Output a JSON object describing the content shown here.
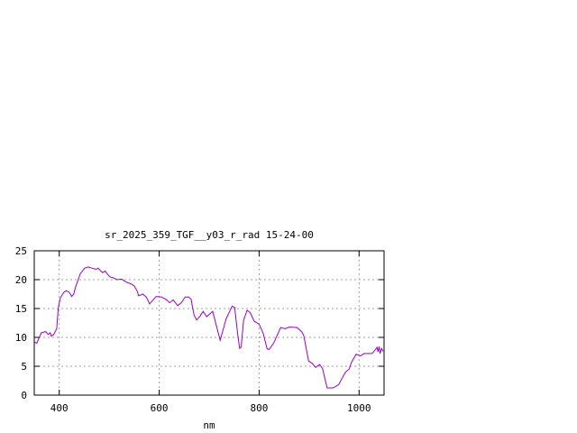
{
  "chart_data": {
    "type": "line",
    "title": "sr_2025_359_TGF__y03_r_rad 15-24-00",
    "xlabel": "nm",
    "ylabel": "",
    "xlim": [
      350,
      1050
    ],
    "ylim": [
      0,
      25
    ],
    "xticks": [
      400,
      600,
      800,
      1000
    ],
    "yticks": [
      0,
      5,
      10,
      15,
      20,
      25
    ],
    "grid": true,
    "line_color": "#9400d3",
    "series": [
      {
        "x": [
          350,
          355,
          364,
          373,
          378,
          382,
          384,
          389,
          395,
          398,
          402,
          409,
          414,
          420,
          425,
          429,
          433,
          442,
          451,
          458,
          465,
          474,
          478,
          483,
          487,
          492,
          496,
          501,
          509,
          516,
          525,
          530,
          536,
          543,
          550,
          556,
          559,
          567,
          574,
          581,
          588,
          594,
          605,
          615,
          621,
          628,
          637,
          644,
          652,
          659,
          664,
          666,
          670,
          675,
          682,
          688,
          695,
          707,
          722,
          734,
          746,
          751,
          757,
          761,
          764,
          769,
          776,
          782,
          790,
          800,
          808,
          816,
          820,
          829,
          843,
          852,
          861,
          876,
          885,
          889,
          899,
          906,
          913,
          921,
          927,
          936,
          948,
          959,
          967,
          973,
          980,
          985,
          994,
          1003,
          1010,
          1026,
          1032,
          1036,
          1038,
          1040,
          1042,
          1045,
          1048
        ],
        "y": [
          9.2,
          9.0,
          10.8,
          11.0,
          10.5,
          10.8,
          10.2,
          10.5,
          11.5,
          15.0,
          16.8,
          17.8,
          18.1,
          17.8,
          17.1,
          17.5,
          18.8,
          21.0,
          22.0,
          22.2,
          22.0,
          21.8,
          22.0,
          21.5,
          21.2,
          21.5,
          21.0,
          20.5,
          20.3,
          20.0,
          20.1,
          19.8,
          19.5,
          19.3,
          18.9,
          18.0,
          17.2,
          17.5,
          17.0,
          15.8,
          16.5,
          17.1,
          17.0,
          16.5,
          16.0,
          16.5,
          15.5,
          16.0,
          17.0,
          17.0,
          16.6,
          15.5,
          13.8,
          13.0,
          13.7,
          14.5,
          13.6,
          14.5,
          9.5,
          13.2,
          15.4,
          15.2,
          10.6,
          8.1,
          8.3,
          13.0,
          14.7,
          14.3,
          12.8,
          12.3,
          10.7,
          8.0,
          7.9,
          9.0,
          11.7,
          11.5,
          11.8,
          11.7,
          11.0,
          10.4,
          5.9,
          5.5,
          4.8,
          5.3,
          4.6,
          1.25,
          1.25,
          1.8,
          3.1,
          4.0,
          4.5,
          5.7,
          7.1,
          6.8,
          7.2,
          7.2,
          7.8,
          8.3,
          7.5,
          8.4,
          7.2,
          8.1,
          7.6
        ]
      }
    ]
  }
}
